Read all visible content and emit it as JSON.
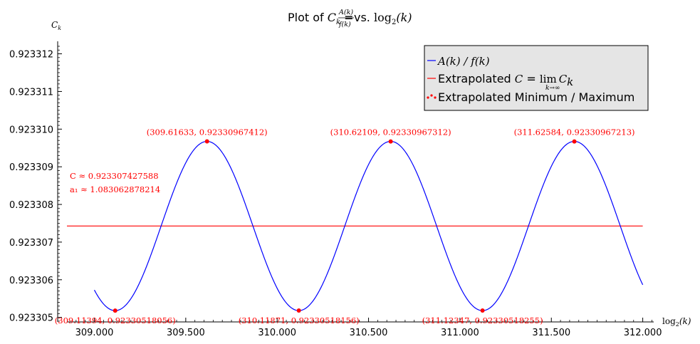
{
  "chart_data": {
    "type": "line",
    "title_prefix": "Plot of ",
    "title_math": "C",
    "title_math_sub": "k",
    "title_eq": " = ",
    "title_frac_num": "A(k)",
    "title_frac_den": "f(k)",
    "title_vs": " vs. ",
    "title_log": "log",
    "title_log_sub": "2",
    "title_log_arg": "(k)",
    "ylabel": "C",
    "ylabel_sub": "k",
    "xlabel": "log",
    "xlabel_sub": "2",
    "xlabel_arg": "(k)",
    "xlim": [
      308.85,
      312.06
    ],
    "ylim": [
      0.92330488,
      0.92331237
    ],
    "x_ticks": [
      309.0,
      309.5,
      310.0,
      310.5,
      311.0,
      311.5,
      312.0
    ],
    "x_tick_labels": [
      "309.000",
      "309.500",
      "310.000",
      "310.500",
      "311.000",
      "311.500",
      "312.000"
    ],
    "y_ticks": [
      0.923305,
      0.923306,
      0.923307,
      0.923308,
      0.923309,
      0.92331,
      0.923311,
      0.923312
    ],
    "y_tick_labels": [
      "0.923305",
      "0.923306",
      "0.923307",
      "0.923308",
      "0.923309",
      "0.923310",
      "0.923311",
      "0.923312"
    ],
    "series": [
      {
        "name": "A(k) / f(k)",
        "color": "#0000ff",
        "model": {
          "C": 0.923307427588,
          "amplitude": 2.24678e-06,
          "min_x": 309.11394,
          "period": 1.0048,
          "x_start": 309.0,
          "x_end": 312.0
        }
      },
      {
        "name": "Extrapolated C = lim C_k",
        "color": "#ff0000",
        "y": 0.923307427588,
        "x_start": 308.85,
        "x_end": 312.0
      }
    ],
    "extrema": [
      {
        "x": 309.11394,
        "y": 0.92330518056,
        "label": "(309.11394, 0.92330518056)",
        "pos": "below"
      },
      {
        "x": 309.61633,
        "y": 0.92330967412,
        "label": "(309.61633, 0.92330967412)",
        "pos": "above"
      },
      {
        "x": 310.11871,
        "y": 0.92330518156,
        "label": "(310.11871, 0.92330518156)",
        "pos": "below"
      },
      {
        "x": 310.62109,
        "y": 0.92330967312,
        "label": "(310.62109, 0.92330967312)",
        "pos": "above"
      },
      {
        "x": 311.12347,
        "y": 0.92330518255,
        "label": "(311.12347, 0.92330518255)",
        "pos": "below"
      },
      {
        "x": 311.62584,
        "y": 0.92330967213,
        "label": "(311.62584, 0.92330967213)",
        "pos": "above"
      }
    ],
    "annotation_C": "C  ≈ 0.923307427588",
    "annotation_a1": "a₁ ≈ 1.083062878214",
    "legend": {
      "placement": "top-right",
      "entry1_math": "A(k)  /  f(k)",
      "entry2_text": "Extrapolated ",
      "entry2_math": "C",
      "entry2_eq": " = ",
      "entry2_lim": "lim",
      "entry2_lim_sub": "k→∞",
      "entry2_ck": "C",
      "entry2_ck_sub": "k",
      "entry3_text": "Extrapolated Minimum / Maximum"
    },
    "colors": {
      "curve": "#0000ff",
      "limit": "#ff0000",
      "points": "#ff0000",
      "legend_bg": "#e5e5e5"
    },
    "grid": false
  }
}
